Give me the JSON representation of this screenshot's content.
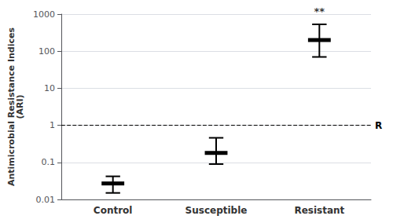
{
  "chart_data": {
    "type": "errorbar",
    "categories": [
      "Control",
      "Susceptible",
      "Resistant"
    ],
    "values": [
      0.027,
      0.18,
      200
    ],
    "yerr_low": [
      0.012,
      0.09,
      130
    ],
    "yerr_high": [
      0.015,
      0.28,
      330
    ],
    "color": "#000000",
    "ylabel": "Antimicrobial Resistance Indices\n(ARI)",
    "ylim": [
      0.01,
      1000
    ],
    "yticks": [
      0.01,
      0.1,
      1,
      10,
      100,
      1000
    ],
    "log": "y",
    "grid": true,
    "annotations": [
      {
        "text": "R",
        "y": 1,
        "line_style": "dashed"
      },
      {
        "text": "**",
        "x": "Resistant"
      }
    ]
  }
}
